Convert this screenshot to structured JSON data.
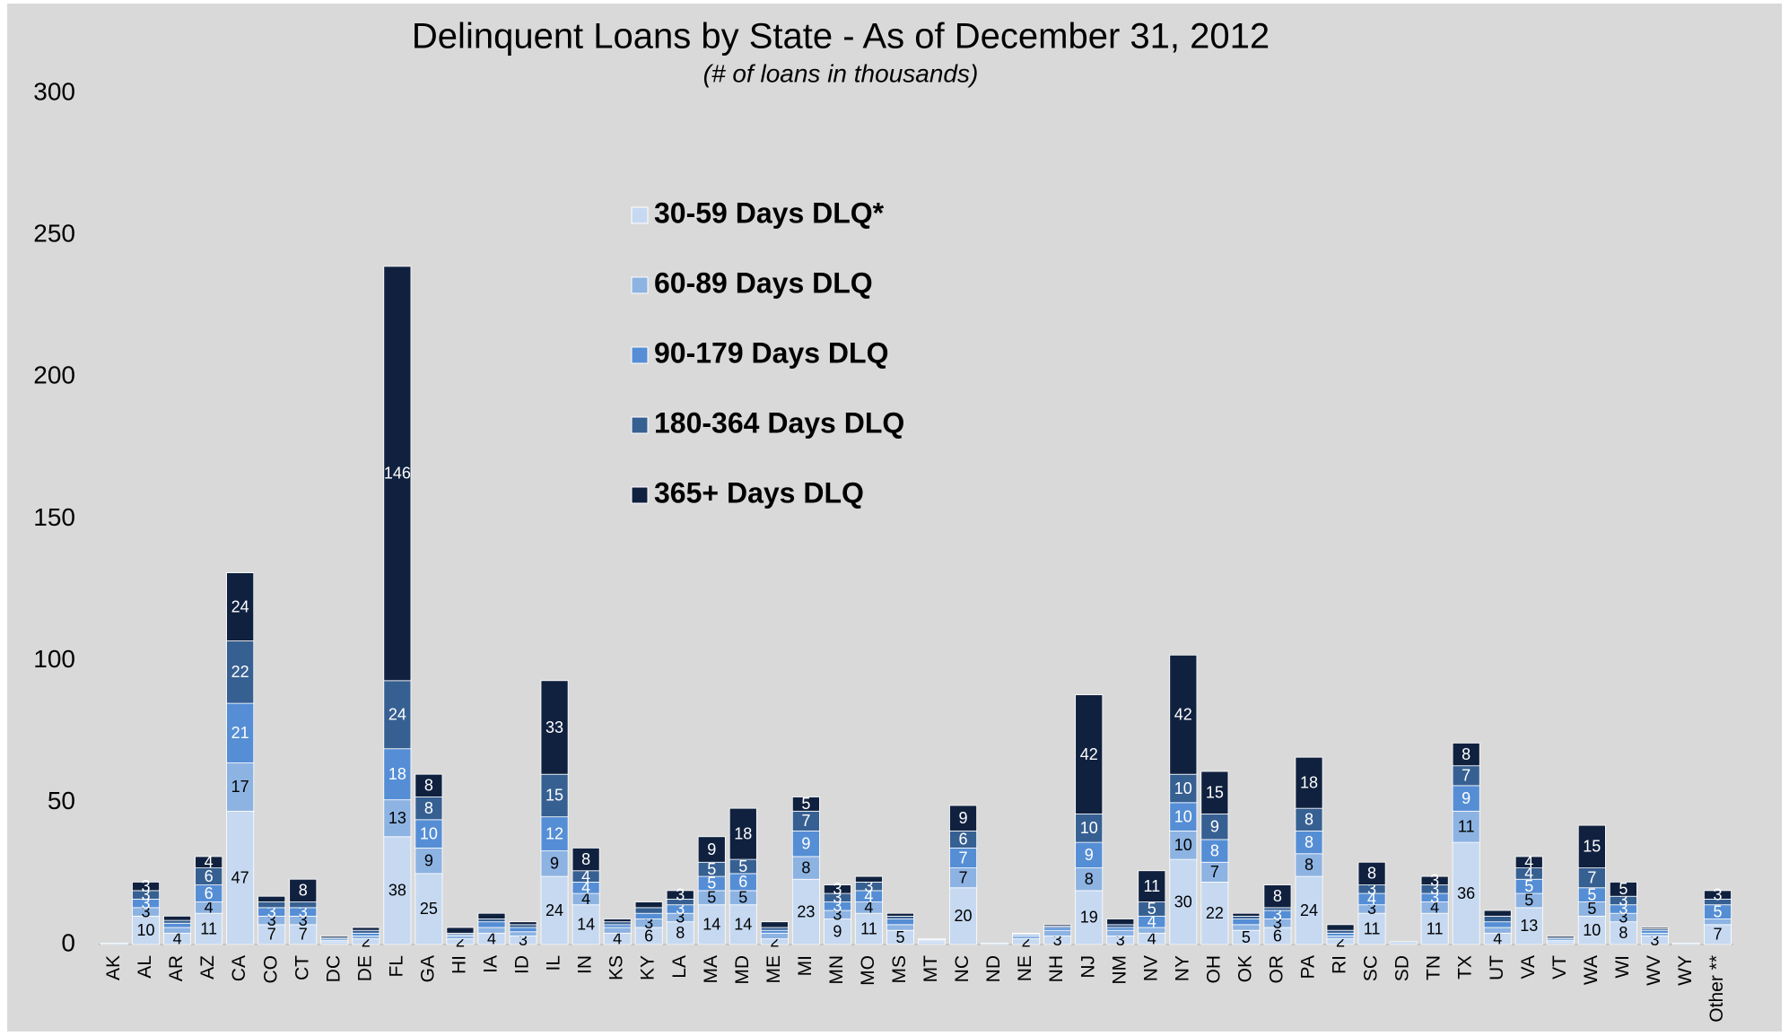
{
  "chart_data": {
    "type": "stacked_bar",
    "title": "Delinquent Loans by State - As of December 31, 2012",
    "subtitle": "(# of loans in thousands)",
    "categories": [
      "AK",
      "AL",
      "AR",
      "AZ",
      "CA",
      "CO",
      "CT",
      "DC",
      "DE",
      "FL",
      "GA",
      "HI",
      "IA",
      "ID",
      "IL",
      "IN",
      "KS",
      "KY",
      "LA",
      "MA",
      "MD",
      "ME",
      "MI",
      "MN",
      "MO",
      "MS",
      "MT",
      "NC",
      "ND",
      "NE",
      "NH",
      "NJ",
      "NM",
      "NV",
      "NY",
      "OH",
      "OK",
      "OR",
      "PA",
      "RI",
      "SC",
      "SD",
      "TN",
      "TX",
      "UT",
      "VA",
      "VT",
      "WA",
      "WI",
      "WV",
      "WY",
      "Other **"
    ],
    "series": [
      {
        "name": "30-59 Days DLQ*",
        "color": "#c6d9f1",
        "values": [
          0.5,
          10,
          4,
          11,
          47,
          7,
          7,
          1,
          2,
          38,
          25,
          2,
          4,
          3,
          24,
          14,
          4,
          6,
          8,
          14,
          14,
          2,
          23,
          9,
          11,
          5,
          1,
          20,
          0.5,
          2,
          3,
          19,
          3,
          4,
          30,
          22,
          5,
          6,
          24,
          2,
          11,
          1,
          11,
          36,
          4,
          13,
          1,
          10,
          8,
          3,
          0.5,
          7
        ]
      },
      {
        "name": "60-89 Days DLQ",
        "color": "#8db3e2",
        "values": [
          0,
          3,
          2,
          4,
          17,
          3,
          3,
          0.5,
          1,
          13,
          9,
          1,
          2,
          1.5,
          9,
          4,
          2,
          3,
          3,
          5,
          5,
          2,
          8,
          3,
          4,
          2,
          0.5,
          7,
          0,
          1,
          2,
          8,
          2,
          2,
          10,
          7,
          2,
          3,
          8,
          1,
          3,
          0,
          4,
          11,
          2,
          5,
          0.5,
          5,
          3,
          1,
          0,
          2
        ]
      },
      {
        "name": "90-179 Days DLQ",
        "color": "#558ed5",
        "values": [
          0,
          3,
          1.5,
          6,
          21,
          3,
          3,
          0.5,
          1,
          18,
          10,
          0.5,
          2,
          1.5,
          12,
          4,
          1,
          2,
          3,
          5,
          6,
          1,
          9,
          3,
          4,
          2,
          0.3,
          7,
          0,
          0.5,
          1,
          9,
          1,
          4,
          10,
          8,
          2,
          3,
          8,
          1,
          4,
          0,
          3,
          9,
          2,
          5,
          0.5,
          5,
          3,
          1,
          0,
          5
        ]
      },
      {
        "name": "180-364 Days DLQ",
        "color": "#376092",
        "values": [
          0,
          3,
          1,
          6,
          22,
          2,
          2,
          0.5,
          1,
          24,
          8,
          0.5,
          1,
          1,
          15,
          4,
          1,
          2,
          2,
          5,
          5,
          1,
          7,
          3,
          3,
          1,
          0.1,
          6,
          0,
          0.3,
          0.5,
          10,
          1,
          5,
          10,
          9,
          1,
          1,
          8,
          1,
          3,
          0,
          3,
          7,
          2,
          4,
          0.5,
          7,
          3,
          0.5,
          0,
          2
        ]
      },
      {
        "name": "365+ Days DLQ",
        "color": "#10213f",
        "values": [
          0,
          3,
          1.5,
          4,
          24,
          2,
          8,
          0.5,
          1,
          146,
          8,
          2,
          2,
          1,
          33,
          8,
          1,
          2,
          3,
          9,
          18,
          2,
          5,
          3,
          2,
          1,
          0.1,
          9,
          0,
          0.2,
          0.5,
          42,
          2,
          11,
          42,
          15,
          1,
          8,
          18,
          2,
          8,
          0,
          3,
          8,
          2,
          4,
          0.5,
          15,
          5,
          0.5,
          0,
          3
        ]
      }
    ],
    "ylim": [
      0,
      300
    ],
    "yticks": [
      0,
      50,
      100,
      150,
      200,
      250,
      300
    ]
  }
}
